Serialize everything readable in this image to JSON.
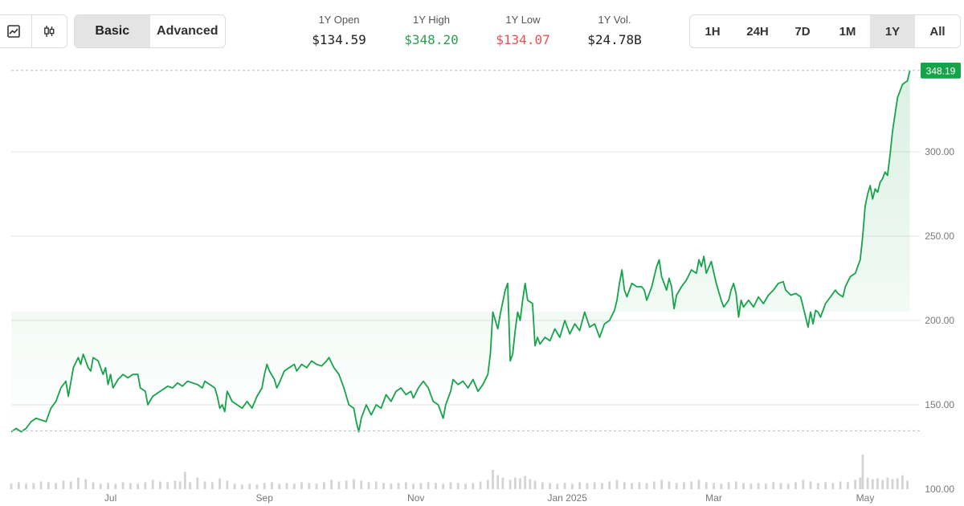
{
  "toolbar": {
    "chart_types": [
      {
        "icon": "line-chart-icon",
        "active": true
      },
      {
        "icon": "candlestick-icon",
        "active": false
      }
    ],
    "modes": [
      {
        "label": "Basic",
        "active": true
      },
      {
        "label": "Advanced",
        "active": false
      }
    ],
    "stats": [
      {
        "label": "1Y Open",
        "value": "$134.59",
        "color": "#222222"
      },
      {
        "label": "1Y High",
        "value": "$348.20",
        "color": "#2e9e4f"
      },
      {
        "label": "1Y Low",
        "value": "$134.07",
        "color": "#e55353"
      },
      {
        "label": "1Y Vol.",
        "value": "$24.78B",
        "color": "#222222"
      }
    ],
    "ranges": [
      {
        "label": "1H",
        "active": false
      },
      {
        "label": "24H",
        "active": false
      },
      {
        "label": "7D",
        "active": false
      },
      {
        "label": "1M",
        "active": false
      },
      {
        "label": "1Y",
        "active": true
      },
      {
        "label": "All",
        "active": false
      }
    ]
  },
  "chart_data": {
    "type": "area",
    "series_color": "#16a34a",
    "current_price_label": "348.19",
    "current_price": 348.19,
    "open_reference": 134.59,
    "ylim": [
      100,
      355
    ],
    "y_ticks": [
      {
        "value": 150,
        "label": "150.00"
      },
      {
        "value": 200,
        "label": "200.00"
      },
      {
        "value": 250,
        "label": "250.00"
      },
      {
        "value": 300,
        "label": "300.00"
      }
    ],
    "y_axis_bottom_label": "100.00",
    "x_range": [
      0,
      366
    ],
    "x_ticks": [
      {
        "day": 40,
        "label": "Jul"
      },
      {
        "day": 102,
        "label": "Sep"
      },
      {
        "day": 163,
        "label": "Nov"
      },
      {
        "day": 224,
        "label": "Jan 2025"
      },
      {
        "day": 283,
        "label": "Mar"
      },
      {
        "day": 344,
        "label": "May"
      }
    ],
    "points": [
      [
        0,
        134
      ],
      [
        2,
        136
      ],
      [
        4,
        134
      ],
      [
        6,
        136
      ],
      [
        8,
        140
      ],
      [
        10,
        142
      ],
      [
        12,
        141
      ],
      [
        14,
        140
      ],
      [
        16,
        148
      ],
      [
        18,
        152
      ],
      [
        20,
        160
      ],
      [
        22,
        164
      ],
      [
        23,
        155
      ],
      [
        25,
        172
      ],
      [
        27,
        178
      ],
      [
        28,
        174
      ],
      [
        29,
        180
      ],
      [
        31,
        172
      ],
      [
        32,
        170
      ],
      [
        33,
        178
      ],
      [
        35,
        176
      ],
      [
        37,
        168
      ],
      [
        38,
        172
      ],
      [
        39,
        162
      ],
      [
        40,
        168
      ],
      [
        41,
        160
      ],
      [
        43,
        165
      ],
      [
        45,
        168
      ],
      [
        47,
        166
      ],
      [
        49,
        168
      ],
      [
        51,
        168
      ],
      [
        52,
        160
      ],
      [
        54,
        158
      ],
      [
        55,
        150
      ],
      [
        57,
        155
      ],
      [
        59,
        157
      ],
      [
        61,
        159
      ],
      [
        63,
        161
      ],
      [
        65,
        160
      ],
      [
        67,
        163
      ],
      [
        69,
        161
      ],
      [
        71,
        164
      ],
      [
        73,
        163
      ],
      [
        75,
        162
      ],
      [
        77,
        160
      ],
      [
        78,
        164
      ],
      [
        80,
        162
      ],
      [
        82,
        160
      ],
      [
        83,
        155
      ],
      [
        84,
        148
      ],
      [
        85,
        150
      ],
      [
        86,
        146
      ],
      [
        87,
        158
      ],
      [
        89,
        152
      ],
      [
        91,
        150
      ],
      [
        93,
        148
      ],
      [
        95,
        152
      ],
      [
        97,
        148
      ],
      [
        99,
        155
      ],
      [
        101,
        160
      ],
      [
        102,
        168
      ],
      [
        103,
        174
      ],
      [
        104,
        170
      ],
      [
        106,
        165
      ],
      [
        107,
        160
      ],
      [
        108,
        163
      ],
      [
        110,
        170
      ],
      [
        112,
        172
      ],
      [
        114,
        174
      ],
      [
        115,
        170
      ],
      [
        117,
        174
      ],
      [
        119,
        172
      ],
      [
        121,
        176
      ],
      [
        123,
        174
      ],
      [
        125,
        173
      ],
      [
        127,
        176
      ],
      [
        128,
        178
      ],
      [
        130,
        172
      ],
      [
        132,
        168
      ],
      [
        134,
        160
      ],
      [
        136,
        150
      ],
      [
        138,
        148
      ],
      [
        139,
        140
      ],
      [
        140,
        134
      ],
      [
        141,
        142
      ],
      [
        143,
        150
      ],
      [
        145,
        144
      ],
      [
        147,
        150
      ],
      [
        149,
        148
      ],
      [
        151,
        156
      ],
      [
        153,
        152
      ],
      [
        155,
        158
      ],
      [
        157,
        160
      ],
      [
        159,
        156
      ],
      [
        161,
        158
      ],
      [
        162,
        154
      ],
      [
        164,
        160
      ],
      [
        166,
        164
      ],
      [
        168,
        160
      ],
      [
        170,
        152
      ],
      [
        172,
        150
      ],
      [
        174,
        142
      ],
      [
        175,
        150
      ],
      [
        177,
        158
      ],
      [
        178,
        165
      ],
      [
        180,
        162
      ],
      [
        182,
        164
      ],
      [
        184,
        160
      ],
      [
        186,
        165
      ],
      [
        188,
        158
      ],
      [
        190,
        162
      ],
      [
        192,
        168
      ],
      [
        193,
        180
      ],
      [
        194,
        205
      ],
      [
        195,
        200
      ],
      [
        196,
        195
      ],
      [
        197,
        204
      ],
      [
        199,
        218
      ],
      [
        200,
        222
      ],
      [
        201,
        176
      ],
      [
        202,
        180
      ],
      [
        203,
        194
      ],
      [
        204,
        205
      ],
      [
        205,
        200
      ],
      [
        206,
        212
      ],
      [
        207,
        222
      ],
      [
        208,
        212
      ],
      [
        210,
        210
      ],
      [
        211,
        185
      ],
      [
        212,
        190
      ],
      [
        213,
        186
      ],
      [
        215,
        190
      ],
      [
        217,
        188
      ],
      [
        219,
        195
      ],
      [
        221,
        190
      ],
      [
        223,
        200
      ],
      [
        225,
        192
      ],
      [
        227,
        198
      ],
      [
        229,
        194
      ],
      [
        231,
        205
      ],
      [
        233,
        196
      ],
      [
        235,
        198
      ],
      [
        237,
        190
      ],
      [
        239,
        198
      ],
      [
        241,
        200
      ],
      [
        243,
        206
      ],
      [
        244,
        212
      ],
      [
        245,
        222
      ],
      [
        246,
        230
      ],
      [
        247,
        218
      ],
      [
        248,
        214
      ],
      [
        250,
        222
      ],
      [
        252,
        220
      ],
      [
        254,
        220
      ],
      [
        255,
        218
      ],
      [
        256,
        212
      ],
      [
        258,
        220
      ],
      [
        260,
        232
      ],
      [
        261,
        236
      ],
      [
        262,
        226
      ],
      [
        264,
        218
      ],
      [
        265,
        225
      ],
      [
        266,
        220
      ],
      [
        267,
        207
      ],
      [
        268,
        215
      ],
      [
        270,
        220
      ],
      [
        272,
        224
      ],
      [
        274,
        230
      ],
      [
        276,
        228
      ],
      [
        277,
        236
      ],
      [
        278,
        232
      ],
      [
        279,
        238
      ],
      [
        280,
        228
      ],
      [
        282,
        235
      ],
      [
        284,
        222
      ],
      [
        286,
        212
      ],
      [
        287,
        208
      ],
      [
        289,
        212
      ],
      [
        290,
        218
      ],
      [
        291,
        222
      ],
      [
        292,
        216
      ],
      [
        293,
        202
      ],
      [
        294,
        212
      ],
      [
        295,
        208
      ],
      [
        297,
        212
      ],
      [
        299,
        208
      ],
      [
        301,
        214
      ],
      [
        303,
        210
      ],
      [
        305,
        215
      ],
      [
        307,
        218
      ],
      [
        309,
        222
      ],
      [
        311,
        223
      ],
      [
        312,
        218
      ],
      [
        314,
        215
      ],
      [
        316,
        216
      ],
      [
        318,
        214
      ],
      [
        319,
        208
      ],
      [
        320,
        202
      ],
      [
        321,
        196
      ],
      [
        322,
        205
      ],
      [
        323,
        198
      ],
      [
        324,
        206
      ],
      [
        325,
        205
      ],
      [
        326,
        202
      ],
      [
        328,
        210
      ],
      [
        330,
        214
      ],
      [
        332,
        218
      ],
      [
        333,
        216
      ],
      [
        335,
        214
      ],
      [
        336,
        220
      ],
      [
        338,
        226
      ],
      [
        340,
        228
      ],
      [
        342,
        236
      ],
      [
        343,
        250
      ],
      [
        344,
        268
      ],
      [
        345,
        275
      ],
      [
        346,
        280
      ],
      [
        347,
        272
      ],
      [
        348,
        278
      ],
      [
        349,
        276
      ],
      [
        350,
        282
      ],
      [
        351,
        284
      ],
      [
        352,
        288
      ],
      [
        353,
        286
      ],
      [
        354,
        298
      ],
      [
        355,
        312
      ],
      [
        356,
        322
      ],
      [
        357,
        332
      ],
      [
        359,
        340
      ],
      [
        361,
        342
      ],
      [
        362,
        348.19
      ]
    ],
    "volume_ylim": [
      0,
      100
    ],
    "volume": [
      [
        0,
        15
      ],
      [
        3,
        18
      ],
      [
        6,
        14
      ],
      [
        9,
        16
      ],
      [
        12,
        20
      ],
      [
        15,
        18
      ],
      [
        18,
        16
      ],
      [
        21,
        22
      ],
      [
        24,
        20
      ],
      [
        27,
        30
      ],
      [
        30,
        26
      ],
      [
        33,
        18
      ],
      [
        36,
        14
      ],
      [
        39,
        16
      ],
      [
        42,
        14
      ],
      [
        45,
        18
      ],
      [
        48,
        16
      ],
      [
        51,
        14
      ],
      [
        54,
        18
      ],
      [
        57,
        24
      ],
      [
        60,
        20
      ],
      [
        63,
        18
      ],
      [
        66,
        22
      ],
      [
        68,
        20
      ],
      [
        70,
        45
      ],
      [
        72,
        18
      ],
      [
        75,
        30
      ],
      [
        78,
        20
      ],
      [
        81,
        18
      ],
      [
        84,
        28
      ],
      [
        87,
        22
      ],
      [
        90,
        14
      ],
      [
        93,
        12
      ],
      [
        96,
        14
      ],
      [
        99,
        12
      ],
      [
        102,
        16
      ],
      [
        105,
        18
      ],
      [
        108,
        14
      ],
      [
        111,
        16
      ],
      [
        114,
        14
      ],
      [
        117,
        18
      ],
      [
        120,
        16
      ],
      [
        123,
        14
      ],
      [
        126,
        18
      ],
      [
        129,
        24
      ],
      [
        132,
        20
      ],
      [
        135,
        22
      ],
      [
        138,
        26
      ],
      [
        141,
        22
      ],
      [
        144,
        18
      ],
      [
        147,
        20
      ],
      [
        150,
        16
      ],
      [
        153,
        14
      ],
      [
        156,
        16
      ],
      [
        159,
        18
      ],
      [
        162,
        14
      ],
      [
        165,
        16
      ],
      [
        168,
        18
      ],
      [
        171,
        16
      ],
      [
        174,
        14
      ],
      [
        177,
        18
      ],
      [
        180,
        16
      ],
      [
        183,
        14
      ],
      [
        186,
        16
      ],
      [
        189,
        20
      ],
      [
        192,
        24
      ],
      [
        194,
        50
      ],
      [
        196,
        36
      ],
      [
        198,
        30
      ],
      [
        201,
        24
      ],
      [
        203,
        30
      ],
      [
        205,
        28
      ],
      [
        207,
        34
      ],
      [
        209,
        26
      ],
      [
        211,
        22
      ],
      [
        214,
        18
      ],
      [
        217,
        16
      ],
      [
        220,
        14
      ],
      [
        223,
        16
      ],
      [
        226,
        14
      ],
      [
        229,
        18
      ],
      [
        232,
        16
      ],
      [
        235,
        18
      ],
      [
        238,
        16
      ],
      [
        241,
        20
      ],
      [
        244,
        24
      ],
      [
        247,
        18
      ],
      [
        250,
        16
      ],
      [
        253,
        18
      ],
      [
        256,
        16
      ],
      [
        259,
        20
      ],
      [
        262,
        24
      ],
      [
        265,
        20
      ],
      [
        268,
        16
      ],
      [
        271,
        18
      ],
      [
        274,
        20
      ],
      [
        277,
        24
      ],
      [
        280,
        18
      ],
      [
        283,
        16
      ],
      [
        286,
        14
      ],
      [
        289,
        18
      ],
      [
        292,
        20
      ],
      [
        295,
        16
      ],
      [
        298,
        14
      ],
      [
        301,
        16
      ],
      [
        304,
        14
      ],
      [
        307,
        18
      ],
      [
        310,
        16
      ],
      [
        313,
        14
      ],
      [
        316,
        18
      ],
      [
        319,
        24
      ],
      [
        322,
        20
      ],
      [
        325,
        16
      ],
      [
        328,
        18
      ],
      [
        331,
        16
      ],
      [
        334,
        20
      ],
      [
        337,
        18
      ],
      [
        340,
        24
      ],
      [
        342,
        30
      ],
      [
        343,
        90
      ],
      [
        345,
        30
      ],
      [
        347,
        26
      ],
      [
        349,
        28
      ],
      [
        351,
        24
      ],
      [
        353,
        30
      ],
      [
        355,
        26
      ],
      [
        357,
        28
      ],
      [
        359,
        36
      ],
      [
        361,
        22
      ]
    ]
  }
}
